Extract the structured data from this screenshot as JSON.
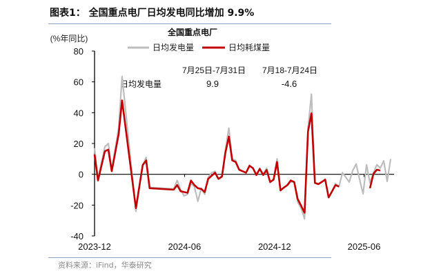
{
  "figure_title": "图表1：  全国重点电厂日均发电同比增加 9.9%",
  "source": "资料来源：iFind，华泰研究",
  "chart_data": {
    "type": "line",
    "title": "全国重点电厂",
    "ylabel": "(%年同比)",
    "xlabel": "",
    "ylim": [
      -40,
      80
    ],
    "yticks": [
      80,
      60,
      40,
      20,
      0,
      -20,
      -40
    ],
    "xlim": [
      "2023-12-01",
      "2025-08-01"
    ],
    "xticks": [
      {
        "date": "2023-12-01",
        "label": "2023-12"
      },
      {
        "date": "2024-06-01",
        "label": "2024-06"
      },
      {
        "date": "2024-12-01",
        "label": "2024-12"
      },
      {
        "date": "2025-06-01",
        "label": "2025-06"
      }
    ],
    "grid": false,
    "legend_position": "top",
    "annotation": {
      "series_label": "日均发电量",
      "col1_header": "7月25日-7月31日",
      "col1_value": "9.9",
      "col2_header": "7月18-7月24日",
      "col2_value": "-4.6"
    },
    "series": [
      {
        "name": "日均发电量",
        "color": "#bdbdbd",
        "points": [
          [
            "2023-12-01",
            17
          ],
          [
            "2023-12-08",
            -3
          ],
          [
            "2023-12-22",
            18
          ],
          [
            "2023-12-29",
            20
          ],
          [
            "2024-01-05",
            3
          ],
          [
            "2024-01-19",
            30
          ],
          [
            "2024-01-26",
            63.5
          ],
          [
            "2024-02-23",
            -24
          ],
          [
            "2024-03-08",
            6
          ],
          [
            "2024-03-15",
            11
          ],
          [
            "2024-03-22",
            -8.5
          ],
          [
            "2024-05-10",
            -9.5
          ],
          [
            "2024-05-17",
            -4
          ],
          [
            "2024-05-24",
            -10
          ],
          [
            "2024-05-31",
            -14
          ],
          [
            "2024-06-07",
            -13
          ],
          [
            "2024-06-14",
            -6
          ],
          [
            "2024-06-21",
            -8
          ],
          [
            "2024-06-28",
            -17.5
          ],
          [
            "2024-07-05",
            -9
          ],
          [
            "2024-07-12",
            -13
          ],
          [
            "2024-07-19",
            -2
          ],
          [
            "2024-07-26",
            1
          ],
          [
            "2024-08-02",
            2
          ],
          [
            "2024-08-09",
            -3
          ],
          [
            "2024-08-16",
            -1
          ],
          [
            "2024-08-23",
            16
          ],
          [
            "2024-08-30",
            30
          ],
          [
            "2024-09-06",
            10
          ],
          [
            "2024-09-13",
            9
          ],
          [
            "2024-09-20",
            3
          ],
          [
            "2024-09-27",
            2
          ],
          [
            "2024-10-04",
            1
          ],
          [
            "2024-10-11",
            6
          ],
          [
            "2024-10-18",
            4
          ],
          [
            "2024-10-25",
            0
          ],
          [
            "2024-11-01",
            4
          ],
          [
            "2024-11-08",
            0
          ],
          [
            "2024-11-15",
            4
          ],
          [
            "2024-11-22",
            -5.5
          ],
          [
            "2024-11-29",
            -3
          ],
          [
            "2024-12-06",
            10
          ],
          [
            "2024-12-13",
            -10
          ],
          [
            "2024-12-20",
            -8.5
          ],
          [
            "2024-12-27",
            -7
          ],
          [
            "2025-01-03",
            -5
          ],
          [
            "2025-01-10",
            -5
          ],
          [
            "2025-01-17",
            -18
          ],
          [
            "2025-01-24",
            -22
          ],
          [
            "2025-01-31",
            -29
          ],
          [
            "2025-02-07",
            30
          ],
          [
            "2025-02-14",
            52
          ],
          [
            "2025-02-21",
            -5.5
          ],
          [
            "2025-02-28",
            -6
          ],
          [
            "2025-03-07",
            -5
          ],
          [
            "2025-03-14",
            -3.5
          ],
          [
            "2025-03-21",
            -15
          ],
          [
            "2025-03-28",
            -11
          ],
          [
            "2025-04-04",
            -6
          ],
          [
            "2025-04-11",
            -8
          ],
          [
            "2025-04-18",
            1
          ],
          [
            "2025-04-25",
            -2
          ],
          [
            "2025-05-02",
            -5
          ],
          [
            "2025-05-09",
            2.5
          ],
          [
            "2025-05-16",
            6.7
          ],
          [
            "2025-05-23",
            -3.4
          ],
          [
            "2025-05-30",
            -12.7
          ],
          [
            "2025-06-06",
            6.2
          ],
          [
            "2025-06-13",
            -5.6
          ],
          [
            "2025-06-20",
            1
          ],
          [
            "2025-06-27",
            6.2
          ],
          [
            "2025-07-04",
            4
          ],
          [
            "2025-07-11",
            8.7
          ],
          [
            "2025-07-18",
            -4.6
          ],
          [
            "2025-07-25",
            9.9
          ]
        ]
      },
      {
        "name": "日均耗煤量",
        "color": "#c00000",
        "points": [
          [
            "2023-12-01",
            12.9
          ],
          [
            "2023-12-08",
            -4
          ],
          [
            "2023-12-22",
            15
          ],
          [
            "2023-12-29",
            16
          ],
          [
            "2024-01-05",
            2
          ],
          [
            "2024-01-19",
            26
          ],
          [
            "2024-01-26",
            48
          ],
          [
            "2024-02-23",
            -22
          ],
          [
            "2024-03-08",
            6
          ],
          [
            "2024-03-15",
            9
          ],
          [
            "2024-03-22",
            -9
          ],
          [
            "2024-05-10",
            -10
          ],
          [
            "2024-05-17",
            -7
          ],
          [
            "2024-05-24",
            -11
          ],
          [
            "2024-05-31",
            -11.5
          ],
          [
            "2024-06-07",
            -12
          ],
          [
            "2024-06-14",
            -4
          ],
          [
            "2024-06-21",
            -7
          ],
          [
            "2024-06-28",
            -9
          ],
          [
            "2024-07-05",
            -9.5
          ],
          [
            "2024-07-12",
            -11.5
          ],
          [
            "2024-07-19",
            -3
          ],
          [
            "2024-07-26",
            -1
          ],
          [
            "2024-08-02",
            1
          ],
          [
            "2024-08-09",
            -3
          ],
          [
            "2024-08-16",
            -1.5
          ],
          [
            "2024-08-23",
            14
          ],
          [
            "2024-08-30",
            24.5
          ],
          [
            "2024-09-06",
            9
          ],
          [
            "2024-09-13",
            8
          ],
          [
            "2024-09-20",
            3
          ],
          [
            "2024-09-27",
            2
          ],
          [
            "2024-10-04",
            1
          ],
          [
            "2024-10-11",
            5.5
          ],
          [
            "2024-10-18",
            4
          ],
          [
            "2024-10-25",
            -0.5
          ],
          [
            "2024-11-01",
            3.5
          ],
          [
            "2024-11-08",
            -0.5
          ],
          [
            "2024-11-15",
            2.8
          ],
          [
            "2024-11-22",
            -5
          ],
          [
            "2024-11-29",
            -3.5
          ],
          [
            "2024-12-06",
            8
          ],
          [
            "2024-12-13",
            -10.5
          ],
          [
            "2024-12-20",
            -8.6
          ],
          [
            "2024-12-27",
            -7
          ],
          [
            "2025-01-03",
            -4
          ],
          [
            "2025-01-10",
            -5
          ],
          [
            "2025-01-17",
            -16
          ],
          [
            "2025-01-24",
            -20.4
          ],
          [
            "2025-01-31",
            -25
          ],
          [
            "2025-02-07",
            27.7
          ],
          [
            "2025-02-14",
            39.6
          ],
          [
            "2025-02-21",
            -5.6
          ],
          [
            "2025-02-28",
            -6.4
          ],
          [
            "2025-03-07",
            -5
          ],
          [
            "2025-03-14",
            -3.4
          ],
          [
            "2025-03-21",
            -15
          ],
          [
            "2025-03-28",
            -11
          ],
          [
            "2025-04-04",
            -7
          ],
          [
            "2025-04-11",
            -8
          ],
          [
            "2025-04-18",
            null
          ],
          [
            "2025-06-13",
            -9
          ],
          [
            "2025-06-20",
            0.3
          ],
          [
            "2025-06-27",
            3
          ],
          [
            "2025-07-04",
            2.5
          ]
        ]
      }
    ]
  }
}
